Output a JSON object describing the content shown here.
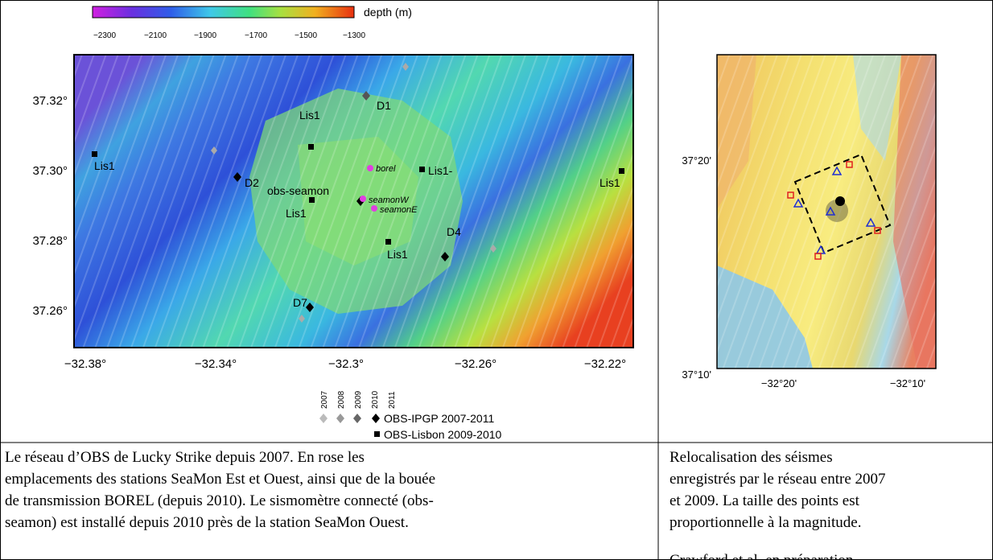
{
  "left_figure": {
    "colorbar": {
      "label": "depth (m)",
      "ticks": [
        "−2300",
        "−2100",
        "−1900",
        "−1700",
        "−1500",
        "−1300"
      ]
    },
    "y_labels": [
      "37.32°",
      "37.30°",
      "37.28°",
      "37.26°"
    ],
    "x_labels": [
      "−32.38°",
      "−32.34°",
      "−32.3°",
      "−32.26°",
      "−32.22°"
    ],
    "stations": [
      "D1",
      "Lis1",
      "Lis1",
      "D2",
      "obs-seamon",
      "borel",
      "seamonW",
      "seamonE",
      "Lis1-",
      "Lis1",
      "Lis1",
      "D4",
      "Lis1",
      "D7"
    ],
    "legend": {
      "years": [
        "2007",
        "2008",
        "2009",
        "2010",
        "2011"
      ],
      "entries": [
        "OBS-IPGP 2007-2011",
        "OBS-Lisbon 2009-2010"
      ]
    }
  },
  "right_figure": {
    "y_labels": [
      "37°20'",
      "37°10'"
    ],
    "x_labels": [
      "−32°20'",
      "−32°10'"
    ]
  },
  "captions": {
    "left": [
      "Le réseau d’OBS de Lucky Strike depuis 2007. En rose les",
      "emplacements des stations SeaMon Est et Ouest, ainsi que de la bouée",
      "de transmission BOREL (depuis 2010). Le sismomètre connecté (obs-",
      "seamon) est installé depuis 2010 près de la station SeaMon Ouest."
    ],
    "right": [
      "Relocalisation des séismes",
      "enregistrés par le réseau entre 2007",
      "et 2009. La taille des points est",
      "proportionnelle à la magnitude.",
      "Crawford et al. en préparation."
    ]
  }
}
